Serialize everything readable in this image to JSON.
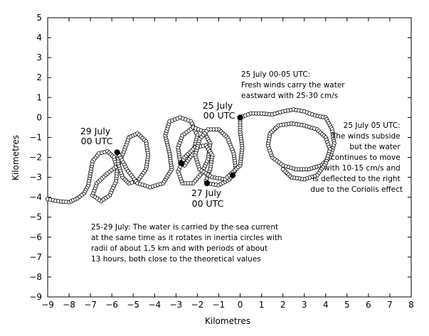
{
  "chart_data": {
    "type": "scatter",
    "title": "",
    "xlabel": "Kilometres",
    "ylabel": "Kilometres",
    "xlim": [
      -9,
      8
    ],
    "ylim": [
      -9,
      5
    ],
    "xticks": [
      "−9",
      "−8",
      "−7",
      "−6",
      "−5",
      "−4",
      "−3",
      "−2",
      "−1",
      "0",
      "1",
      "2",
      "3",
      "4",
      "5",
      "6",
      "7",
      "8"
    ],
    "yticks": [
      "5",
      "4",
      "3",
      "2",
      "1",
      "0",
      "−1",
      "−2",
      "−3",
      "−4",
      "−5",
      "−6",
      "−7",
      "−8",
      "−9"
    ],
    "grid": false,
    "legend": "none",
    "marker": "open-circle",
    "series": [
      {
        "values_note": "trajectory (x,y) in km",
        "points": [
          [
            -9.0,
            -4.1
          ],
          [
            -8.5,
            -4.2
          ],
          [
            -8.0,
            -4.25
          ],
          [
            -7.6,
            -4.05
          ],
          [
            -7.3,
            -3.8
          ],
          [
            -7.1,
            -3.4
          ],
          [
            -7.0,
            -2.8
          ],
          [
            -6.9,
            -2.2
          ],
          [
            -6.6,
            -1.8
          ],
          [
            -6.2,
            -1.7
          ],
          [
            -5.9,
            -2.0
          ],
          [
            -5.75,
            -2.6
          ],
          [
            -5.8,
            -3.2
          ],
          [
            -6.1,
            -3.9
          ],
          [
            -6.5,
            -4.2
          ],
          [
            -6.9,
            -3.9
          ],
          [
            -6.7,
            -3.3
          ],
          [
            -6.2,
            -2.8
          ],
          [
            -5.7,
            -2.4
          ],
          [
            -5.4,
            -1.6
          ],
          [
            -5.2,
            -1.0
          ],
          [
            -4.8,
            -0.8
          ],
          [
            -4.4,
            -1.2
          ],
          [
            -4.3,
            -1.9
          ],
          [
            -4.4,
            -2.6
          ],
          [
            -4.8,
            -3.2
          ],
          [
            -5.2,
            -3.3
          ],
          [
            -5.5,
            -3.0
          ],
          [
            -5.7,
            -2.3
          ],
          [
            -5.7,
            -1.8
          ],
          [
            -5.3,
            -2.6
          ],
          [
            -4.8,
            -3.3
          ],
          [
            -4.2,
            -3.5
          ],
          [
            -3.6,
            -3.3
          ],
          [
            -3.2,
            -2.6
          ],
          [
            -3.3,
            -1.8
          ],
          [
            -3.5,
            -0.9
          ],
          [
            -3.3,
            -0.2
          ],
          [
            -2.8,
            0.0
          ],
          [
            -2.3,
            -0.2
          ],
          [
            -2.0,
            -0.9
          ],
          [
            -2.2,
            -1.8
          ],
          [
            -2.6,
            -2.4
          ],
          [
            -2.8,
            -2.3
          ],
          [
            -2.9,
            -1.5
          ],
          [
            -2.7,
            -0.9
          ],
          [
            -2.2,
            -0.5
          ],
          [
            -1.7,
            -0.7
          ],
          [
            -1.4,
            -1.3
          ],
          [
            -1.5,
            -2.1
          ],
          [
            -1.8,
            -2.8
          ],
          [
            -2.2,
            -3.3
          ],
          [
            -2.7,
            -3.3
          ],
          [
            -2.9,
            -2.7
          ],
          [
            -2.6,
            -2.0
          ],
          [
            -2.1,
            -1.5
          ],
          [
            -1.6,
            -1.4
          ],
          [
            -1.3,
            -1.9
          ],
          [
            -1.4,
            -2.6
          ],
          [
            -1.6,
            -3.2
          ],
          [
            -1.5,
            -3.3
          ],
          [
            -1.0,
            -3.4
          ],
          [
            -0.5,
            -3.1
          ],
          [
            -0.2,
            -2.6
          ],
          [
            -0.3,
            -1.8
          ],
          [
            -0.6,
            -1.0
          ],
          [
            -1.0,
            -0.6
          ],
          [
            -1.5,
            -0.6
          ],
          [
            -1.9,
            -1.1
          ],
          [
            -2.1,
            -1.9
          ],
          [
            -1.9,
            -2.6
          ],
          [
            -1.3,
            -3.0
          ],
          [
            -0.7,
            -3.1
          ],
          [
            -0.5,
            -2.9
          ],
          [
            0.0,
            -2.4
          ],
          [
            0.1,
            -1.5
          ],
          [
            0.0,
            -0.7
          ],
          [
            0.0,
            0.0
          ],
          [
            0.5,
            0.2
          ],
          [
            1.0,
            0.2
          ],
          [
            1.5,
            0.15
          ],
          [
            2.0,
            0.3
          ],
          [
            2.5,
            0.4
          ],
          [
            3.0,
            0.3
          ],
          [
            3.5,
            0.1
          ],
          [
            4.0,
            0.0
          ],
          [
            4.3,
            -0.6
          ],
          [
            4.4,
            -1.3
          ],
          [
            4.2,
            -2.0
          ],
          [
            3.8,
            -2.4
          ],
          [
            3.2,
            -2.6
          ],
          [
            2.6,
            -2.6
          ],
          [
            2.0,
            -2.4
          ],
          [
            1.5,
            -2.0
          ],
          [
            1.3,
            -1.4
          ],
          [
            1.4,
            -0.8
          ],
          [
            1.8,
            -0.4
          ],
          [
            2.4,
            -0.3
          ],
          [
            3.0,
            -0.4
          ],
          [
            3.6,
            -0.6
          ],
          [
            4.0,
            -1.0
          ],
          [
            4.2,
            -1.6
          ],
          [
            4.0,
            -2.3
          ],
          [
            3.6,
            -2.9
          ],
          [
            3.0,
            -3.1
          ],
          [
            2.4,
            -3.0
          ],
          [
            2.0,
            -2.6
          ]
        ]
      }
    ],
    "markers": [
      {
        "x": -5.75,
        "y": -1.75,
        "filled": true
      },
      {
        "x": -2.75,
        "y": -2.3,
        "filled": true
      },
      {
        "x": -1.55,
        "y": -3.3,
        "filled": true
      },
      {
        "x": -0.35,
        "y": -2.9,
        "filled": true
      },
      {
        "x": 0.0,
        "y": 0.0,
        "filled": true
      }
    ],
    "annotations": [
      {
        "lines": [
          "25 July 00-05 UTC:",
          "Fresh winds carry the water",
          "eastward with 25-30 cm/s"
        ]
      },
      {
        "lines": [
          "25 July",
          "00 UTC"
        ]
      },
      {
        "lines": [
          "25 July 05 UTC:",
          "The winds subside",
          "but the water",
          "continues to move",
          "with 10-15 cm/s and",
          "is deflected to the right",
          "due to the Coriolis effect"
        ]
      },
      {
        "lines": [
          "29 July",
          "00 UTC"
        ]
      },
      {
        "lines": [
          "27 July",
          "00 UTC"
        ]
      },
      {
        "lines": [
          "25-29 July: The water is carried by the sea current",
          "at the same time as it rotates in inertia circles with",
          "radii of about 1,5 km and with periods of about",
          "13 hours, both close to the theoretical values"
        ]
      }
    ]
  }
}
